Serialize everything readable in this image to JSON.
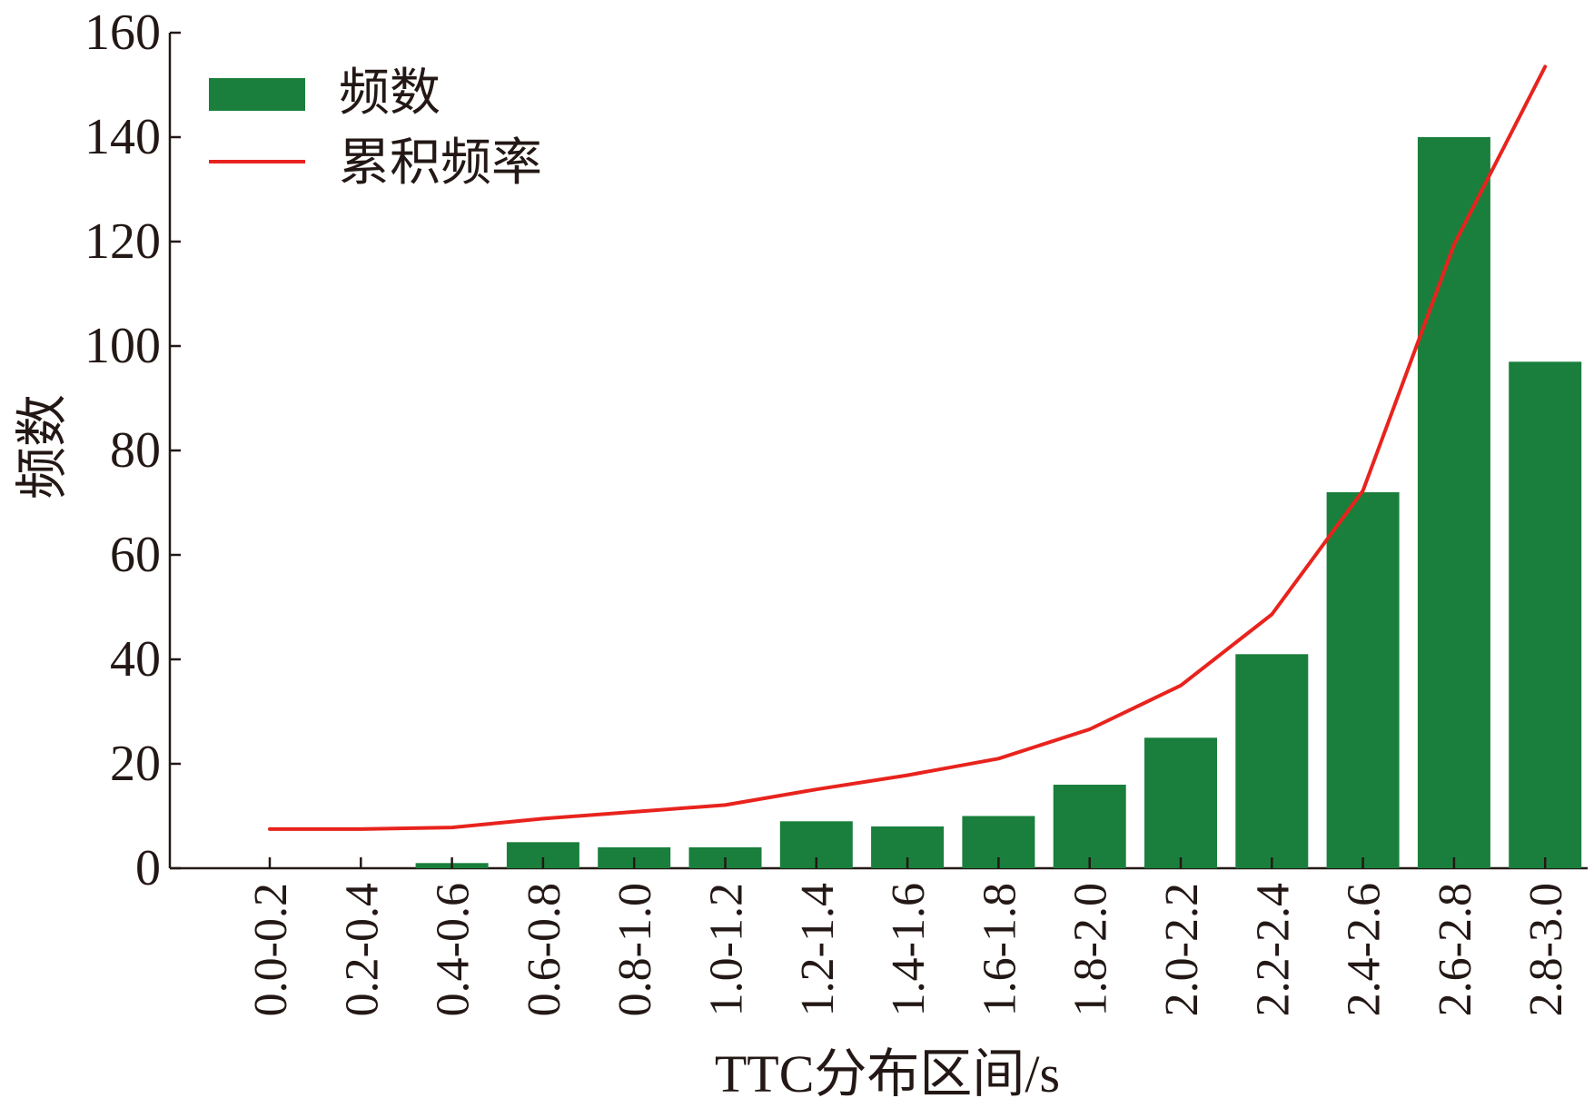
{
  "chart_data": {
    "type": "bar",
    "title": "",
    "xlabel": "TTC分布区间/s",
    "ylabel": "频数",
    "ylim": [
      0,
      160
    ],
    "yticks": [
      "0",
      "20",
      "40",
      "60",
      "80",
      "100",
      "120",
      "140",
      "160"
    ],
    "grid": false,
    "legend_position": "top-left",
    "categories": [
      "0.0-0.2",
      "0.2-0.4",
      "0.4-0.6",
      "0.6-0.8",
      "0.8-1.0",
      "1.0-1.2",
      "1.2-1.4",
      "1.4-1.6",
      "1.6-1.8",
      "1.8-2.0",
      "2.0-2.2",
      "2.2-2.4",
      "2.4-2.6",
      "2.6-2.8",
      "2.8-3.0"
    ],
    "series": [
      {
        "name": "频数",
        "type": "bar",
        "color": "#1a7f3c",
        "values": [
          0,
          0,
          1,
          5,
          4,
          4,
          9,
          8,
          10,
          16,
          25,
          41,
          72,
          140,
          97
        ]
      },
      {
        "name": "累积频率",
        "type": "line",
        "color": "#e8231d",
        "values": [
          7.5,
          7.5,
          7.8,
          9.5,
          10.8,
          12.1,
          15.1,
          17.8,
          21.0,
          26.6,
          35.0,
          48.6,
          72.3,
          119.4,
          153.5
        ]
      }
    ]
  }
}
